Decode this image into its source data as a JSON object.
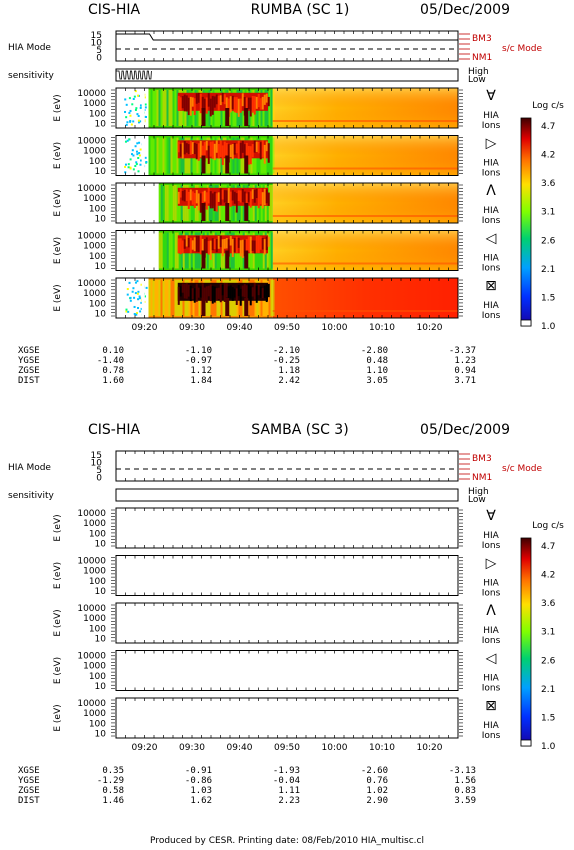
{
  "footer": "Produced by CESR.   Printing date: 08/Feb/2010   HIA_multisc.cl",
  "common": {
    "hia_mode_label": "HIA Mode",
    "mode_ticks": [
      "15",
      "10",
      "5",
      "0"
    ],
    "mode_right_top": "BM3",
    "mode_right_bottom": "NM1",
    "sc_mode_label": "s/c Mode",
    "sensitivity_label": "sensitivity",
    "sens_high": "High",
    "sens_low": "Low",
    "e_axis_label": "E (eV)",
    "e_ticks": [
      "10000",
      "1000",
      "100",
      "10"
    ],
    "ions_label": [
      "HIA",
      "Ions"
    ],
    "direction_symbols": [
      "∀",
      "▷",
      "Λ",
      "◁",
      "⊠"
    ],
    "time_ticks": [
      "09:20",
      "09:30",
      "09:40",
      "09:50",
      "10:00",
      "10:10",
      "10:20"
    ],
    "colorbar_title": "Log c/s",
    "colorbar_ticks": [
      "4.7",
      "4.2",
      "3.6",
      "3.1",
      "2.6",
      "2.1",
      "1.5",
      "1.0"
    ],
    "colorbar_colors": [
      "#6a0000",
      "#d40000",
      "#ff6000",
      "#ffd000",
      "#80ff00",
      "#00c890",
      "#0070ff",
      "#1800a0"
    ]
  },
  "chart_data": [
    {
      "type": "heatmap",
      "instrument": "CIS-HIA",
      "spacecraft": "RUMBA (SC 1)",
      "date": "05/Dec/2009",
      "has_data": true,
      "ephemeris": {
        "labels": [
          "XGSE",
          "YGSE",
          "ZGSE",
          "DIST"
        ],
        "columns": [
          [
            "0.10",
            "-1.40",
            "0.78",
            "1.60"
          ],
          [
            "-1.10",
            "-0.97",
            "1.12",
            "1.84"
          ],
          [
            "-2.10",
            "-0.25",
            "1.18",
            "2.42"
          ],
          [
            "-2.80",
            "0.48",
            "1.10",
            "3.05"
          ],
          [
            "-3.37",
            "1.23",
            "0.94",
            "3.71"
          ]
        ]
      }
    },
    {
      "type": "heatmap",
      "instrument": "CIS-HIA",
      "spacecraft": "SAMBA (SC 3)",
      "date": "05/Dec/2009",
      "has_data": false,
      "ephemeris": {
        "labels": [
          "XGSE",
          "YGSE",
          "ZGSE",
          "DIST"
        ],
        "columns": [
          [
            "0.35",
            "-1.29",
            "0.58",
            "1.46"
          ],
          [
            "-0.91",
            "-0.86",
            "1.03",
            "1.62"
          ],
          [
            "-1.93",
            "-0.04",
            "1.11",
            "2.23"
          ],
          [
            "-2.60",
            "0.76",
            "1.02",
            "2.90"
          ],
          [
            "-3.13",
            "1.56",
            "0.83",
            "3.59"
          ]
        ]
      }
    }
  ]
}
